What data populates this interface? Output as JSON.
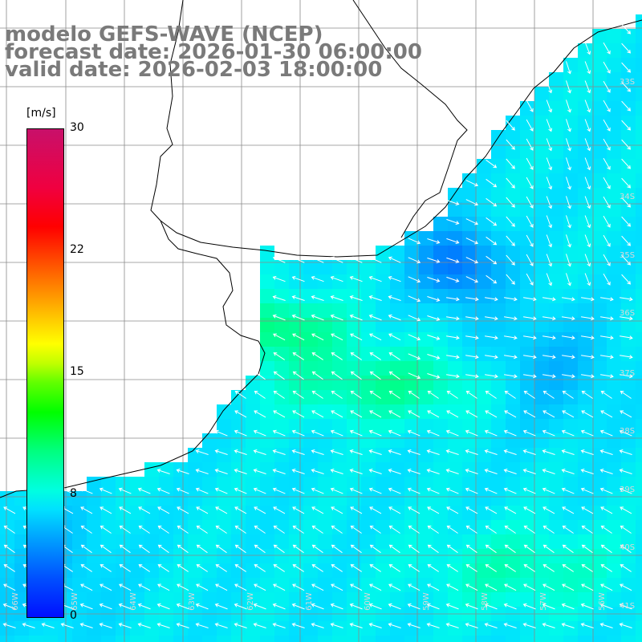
{
  "title": {
    "line1": "modelo GEFS-WAVE (NCEP)",
    "line2": "forecast date: 2026-01-30 06:00:00",
    "line3": "valid date: 2026-02-03 18:00:00"
  },
  "colorbar": {
    "unit": "[m/s]",
    "min": 0,
    "max": 30,
    "tick_labels": [
      "30",
      "22",
      "15",
      "8",
      "0"
    ],
    "tick_values": [
      30,
      22,
      15,
      8,
      0
    ]
  },
  "map": {
    "lat_labels": [
      "33S",
      "34S",
      "35S",
      "36S",
      "37S",
      "38S",
      "39S",
      "40S",
      "41S"
    ],
    "lon_labels": [
      "66W",
      "65W",
      "64W",
      "63W",
      "62W",
      "61W",
      "60W",
      "59W",
      "58W",
      "57W",
      "56W",
      "55W"
    ],
    "land_color": "#ffffff",
    "arrow_color": "#ffffff",
    "grid_color": "#8a8a8a"
  }
}
